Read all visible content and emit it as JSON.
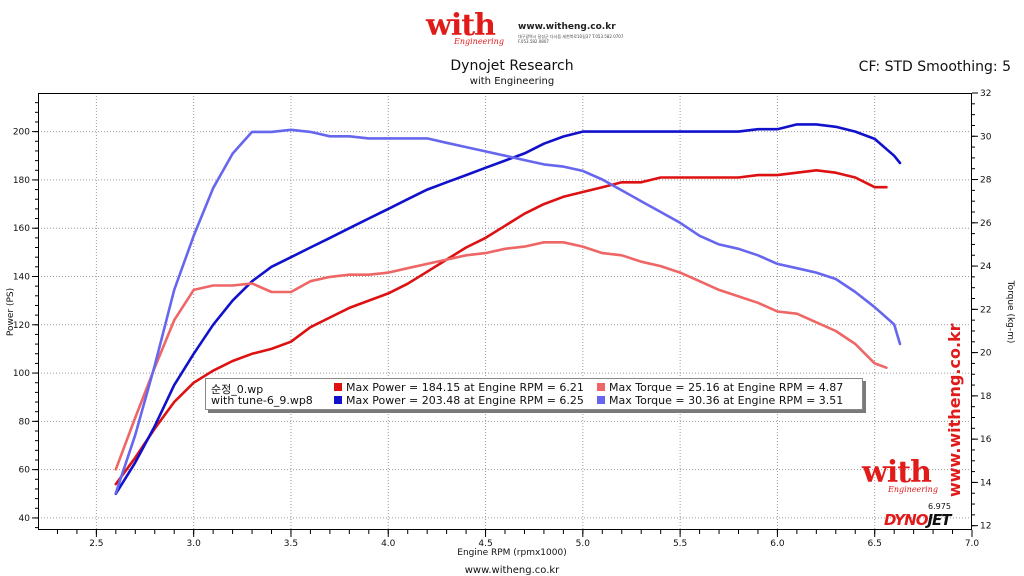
{
  "header": {
    "logo_word": "with",
    "logo_sub": "Engineering",
    "logo_url": "www.witheng.co.kr",
    "logo_address": "대구광역시 달성군 다사읍 세천북로10길37 T.053.582.0707 F.053.582.0807",
    "title": "Dynojet Research",
    "subtitle": "with Engineering",
    "cf_label": "CF: STD Smoothing: 5"
  },
  "footer": {
    "url": "www.witheng.co.kr",
    "watermark_url": "www.witheng.co.kr",
    "watermark_word": "with",
    "watermark_sub": "Engineering",
    "dynojet_a": "DYNO",
    "dynojet_b": "JET",
    "cursor_value": "6.975"
  },
  "legend": {
    "run1": "순정_0.wp",
    "run2": "with tune-6_9.wp8",
    "entries": [
      {
        "text": "Max Power = 184.15 at Engine RPM = 6.21",
        "color": "#dd1111"
      },
      {
        "text": "Max Torque = 25.16 at Engine RPM = 4.87",
        "color": "#ee6666"
      },
      {
        "text": "Max Power = 203.48 at Engine RPM = 6.25",
        "color": "#1111cc"
      },
      {
        "text": "Max Torque = 30.36 at Engine RPM = 3.51",
        "color": "#6666ee"
      }
    ]
  },
  "chart_data": {
    "type": "line",
    "xlabel": "Engine RPM (rpmx1000)",
    "ylabel": "Power (PS)",
    "y2label": "Torque (kg-m)",
    "xlim": [
      2.2,
      7.0
    ],
    "ylim": [
      35,
      216
    ],
    "y2lim": [
      11.8,
      32
    ],
    "xticks": [
      2.5,
      3.0,
      3.5,
      4.0,
      4.5,
      5.0,
      5.5,
      6.0,
      6.5,
      7.0
    ],
    "yticks": [
      40,
      60,
      80,
      100,
      120,
      140,
      160,
      180,
      200
    ],
    "y2ticks": [
      12,
      14,
      16,
      18,
      20,
      22,
      24,
      26,
      28,
      30,
      32
    ],
    "grid": true,
    "series": [
      {
        "name": "Max Power = 184.15 at Engine RPM = 6.21",
        "axis": "power",
        "color": "#dd1111",
        "x": [
          2.6,
          2.7,
          2.8,
          2.9,
          3.0,
          3.1,
          3.2,
          3.3,
          3.4,
          3.5,
          3.6,
          3.7,
          3.8,
          3.9,
          4.0,
          4.1,
          4.2,
          4.3,
          4.4,
          4.5,
          4.6,
          4.7,
          4.8,
          4.9,
          5.0,
          5.1,
          5.2,
          5.3,
          5.4,
          5.5,
          5.6,
          5.7,
          5.8,
          5.9,
          6.0,
          6.1,
          6.2,
          6.3,
          6.4,
          6.5,
          6.56
        ],
        "y": [
          54,
          65,
          77,
          88,
          96,
          101,
          105,
          108,
          110,
          113,
          119,
          123,
          127,
          130,
          133,
          137,
          142,
          147,
          152,
          156,
          161,
          166,
          170,
          173,
          175,
          177,
          179,
          179,
          181,
          181,
          181,
          181,
          181,
          182,
          182,
          183,
          184,
          183,
          181,
          177,
          177
        ]
      },
      {
        "name": "Max Power = 203.48 at Engine RPM = 6.25",
        "axis": "power",
        "color": "#1111cc",
        "x": [
          2.6,
          2.7,
          2.8,
          2.9,
          3.0,
          3.1,
          3.2,
          3.3,
          3.4,
          3.5,
          3.6,
          3.7,
          3.8,
          3.9,
          4.0,
          4.1,
          4.2,
          4.3,
          4.4,
          4.5,
          4.6,
          4.7,
          4.8,
          4.9,
          5.0,
          5.1,
          5.2,
          5.3,
          5.4,
          5.5,
          5.6,
          5.7,
          5.8,
          5.9,
          6.0,
          6.1,
          6.2,
          6.3,
          6.4,
          6.5,
          6.6,
          6.63
        ],
        "y": [
          50,
          63,
          78,
          95,
          108,
          120,
          130,
          138,
          144,
          148,
          152,
          156,
          160,
          164,
          168,
          172,
          176,
          179,
          182,
          185,
          188,
          191,
          195,
          198,
          200,
          200,
          200,
          200,
          200,
          200,
          200,
          200,
          200,
          201,
          201,
          203,
          203,
          202,
          200,
          197,
          190,
          187
        ]
      },
      {
        "name": "Max Torque = 25.16 at Engine RPM = 4.87",
        "axis": "torque",
        "color": "#ee6666",
        "x": [
          2.6,
          2.7,
          2.8,
          2.9,
          3.0,
          3.1,
          3.2,
          3.3,
          3.4,
          3.5,
          3.6,
          3.7,
          3.8,
          3.9,
          4.0,
          4.1,
          4.2,
          4.3,
          4.4,
          4.5,
          4.6,
          4.7,
          4.8,
          4.9,
          5.0,
          5.1,
          5.2,
          5.3,
          5.4,
          5.5,
          5.6,
          5.7,
          5.8,
          5.9,
          6.0,
          6.1,
          6.2,
          6.3,
          6.4,
          6.5,
          6.56
        ],
        "y": [
          14.6,
          17.0,
          19.3,
          21.5,
          22.9,
          23.1,
          23.1,
          23.2,
          22.8,
          22.8,
          23.3,
          23.5,
          23.6,
          23.6,
          23.7,
          23.9,
          24.1,
          24.3,
          24.5,
          24.6,
          24.8,
          24.9,
          25.1,
          25.1,
          24.9,
          24.6,
          24.5,
          24.2,
          24.0,
          23.7,
          23.3,
          22.9,
          22.6,
          22.3,
          21.9,
          21.8,
          21.4,
          21.0,
          20.4,
          19.5,
          19.3
        ]
      },
      {
        "name": "Max Torque = 30.36 at Engine RPM = 3.51",
        "axis": "torque",
        "color": "#6666ee",
        "x": [
          2.6,
          2.7,
          2.8,
          2.9,
          3.0,
          3.1,
          3.2,
          3.3,
          3.4,
          3.5,
          3.6,
          3.7,
          3.8,
          3.9,
          4.0,
          4.1,
          4.2,
          4.3,
          4.4,
          4.5,
          4.6,
          4.7,
          4.8,
          4.9,
          5.0,
          5.1,
          5.2,
          5.3,
          5.4,
          5.5,
          5.6,
          5.7,
          5.8,
          5.9,
          6.0,
          6.1,
          6.2,
          6.3,
          6.4,
          6.5,
          6.6,
          6.63
        ],
        "y": [
          13.5,
          16.2,
          19.4,
          22.9,
          25.4,
          27.6,
          29.2,
          30.2,
          30.2,
          30.3,
          30.2,
          30.0,
          30.0,
          29.9,
          29.9,
          29.9,
          29.9,
          29.7,
          29.5,
          29.3,
          29.1,
          28.9,
          28.7,
          28.6,
          28.4,
          28.0,
          27.5,
          27.0,
          26.5,
          26.0,
          25.4,
          25.0,
          24.8,
          24.5,
          24.1,
          23.9,
          23.7,
          23.4,
          22.8,
          22.1,
          21.3,
          20.4
        ]
      }
    ]
  }
}
